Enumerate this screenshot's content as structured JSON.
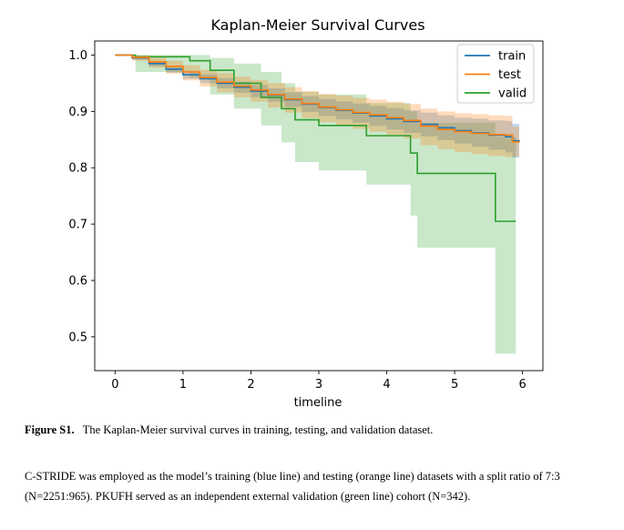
{
  "chart_data": {
    "type": "line",
    "title": "Kaplan-Meier Survival Curves",
    "xlabel": "timeline",
    "ylabel": "",
    "xlim": [
      -0.3,
      6.3
    ],
    "ylim": [
      0.44,
      1.025
    ],
    "xticks": [
      0,
      1,
      2,
      3,
      4,
      5,
      6
    ],
    "yticks": [
      0.5,
      0.6,
      0.7,
      0.8,
      0.9,
      1.0
    ],
    "xtick_labels": [
      "0",
      "1",
      "2",
      "3",
      "4",
      "5",
      "6"
    ],
    "ytick_labels": [
      "0.5",
      "0.6",
      "0.7",
      "0.8",
      "0.9",
      "1.0"
    ],
    "grid": false,
    "legend_position": "top-right",
    "series": [
      {
        "name": "train",
        "color": "#1f77b4",
        "x": [
          0,
          0.25,
          0.5,
          0.75,
          1.0,
          1.25,
          1.5,
          1.75,
          2.0,
          2.25,
          2.5,
          2.75,
          3.0,
          3.25,
          3.5,
          3.75,
          4.0,
          4.25,
          4.5,
          4.75,
          5.0,
          5.25,
          5.5,
          5.75,
          5.85,
          5.95
        ],
        "y": [
          1.0,
          0.995,
          0.985,
          0.975,
          0.965,
          0.958,
          0.95,
          0.943,
          0.936,
          0.929,
          0.921,
          0.913,
          0.907,
          0.902,
          0.897,
          0.892,
          0.887,
          0.882,
          0.877,
          0.871,
          0.866,
          0.862,
          0.858,
          0.855,
          0.848,
          0.845
        ],
        "ci_lower": [
          1.0,
          0.992,
          0.98,
          0.969,
          0.958,
          0.95,
          0.941,
          0.933,
          0.925,
          0.917,
          0.908,
          0.899,
          0.892,
          0.886,
          0.88,
          0.874,
          0.868,
          0.862,
          0.856,
          0.849,
          0.843,
          0.837,
          0.832,
          0.827,
          0.818,
          0.812
        ],
        "ci_upper": [
          1.0,
          0.998,
          0.99,
          0.981,
          0.972,
          0.966,
          0.959,
          0.953,
          0.947,
          0.941,
          0.934,
          0.927,
          0.922,
          0.918,
          0.914,
          0.91,
          0.906,
          0.902,
          0.898,
          0.893,
          0.889,
          0.887,
          0.884,
          0.883,
          0.878,
          0.878
        ]
      },
      {
        "name": "test",
        "color": "#ff7f0e",
        "x": [
          0,
          0.25,
          0.5,
          0.75,
          1.0,
          1.25,
          1.5,
          1.75,
          2.0,
          2.25,
          2.5,
          2.75,
          3.0,
          3.25,
          3.5,
          3.75,
          4.0,
          4.25,
          4.5,
          4.75,
          5.0,
          5.25,
          5.5,
          5.75,
          5.85,
          5.95
        ],
        "y": [
          1.0,
          0.996,
          0.988,
          0.98,
          0.97,
          0.96,
          0.952,
          0.945,
          0.938,
          0.93,
          0.922,
          0.914,
          0.908,
          0.903,
          0.898,
          0.894,
          0.889,
          0.884,
          0.874,
          0.868,
          0.864,
          0.861,
          0.859,
          0.858,
          0.846,
          0.845
        ],
        "ci_lower": [
          1.0,
          0.99,
          0.978,
          0.967,
          0.955,
          0.944,
          0.934,
          0.925,
          0.917,
          0.907,
          0.898,
          0.888,
          0.881,
          0.875,
          0.869,
          0.864,
          0.858,
          0.852,
          0.84,
          0.833,
          0.828,
          0.824,
          0.821,
          0.819,
          0.82,
          0.822
        ],
        "ci_upper": [
          1.0,
          1.0,
          0.996,
          0.99,
          0.982,
          0.974,
          0.968,
          0.962,
          0.956,
          0.95,
          0.943,
          0.936,
          0.931,
          0.928,
          0.924,
          0.921,
          0.917,
          0.913,
          0.905,
          0.9,
          0.897,
          0.895,
          0.893,
          0.892,
          0.873,
          0.872
        ]
      },
      {
        "name": "valid",
        "color": "#2ca02c",
        "x": [
          0,
          0.3,
          1.1,
          1.4,
          1.75,
          2.15,
          2.45,
          2.65,
          3.0,
          3.7,
          4.35,
          4.45,
          5.6,
          5.9
        ],
        "y": [
          1.0,
          0.997,
          0.99,
          0.973,
          0.95,
          0.925,
          0.905,
          0.885,
          0.875,
          0.857,
          0.826,
          0.79,
          0.705,
          0.705
        ],
        "ci_lower": [
          1.0,
          0.97,
          0.96,
          0.93,
          0.905,
          0.875,
          0.845,
          0.81,
          0.795,
          0.77,
          0.715,
          0.658,
          0.47,
          0.47
        ],
        "ci_upper": [
          1.0,
          1.0,
          1.0,
          0.995,
          0.985,
          0.97,
          0.95,
          0.935,
          0.93,
          0.915,
          0.9,
          0.88,
          0.855,
          0.855
        ]
      }
    ]
  },
  "caption": {
    "label": "Figure S1.",
    "text": "The Kaplan-Meier survival curves in training, testing, and validation dataset."
  },
  "body_text": "C-STRIDE was employed as the model’s training (blue line) and testing (orange line) datasets with a split ratio of 7:3 (N=2251:965). PKUFH served as an independent external validation (green line) cohort (N=342)."
}
